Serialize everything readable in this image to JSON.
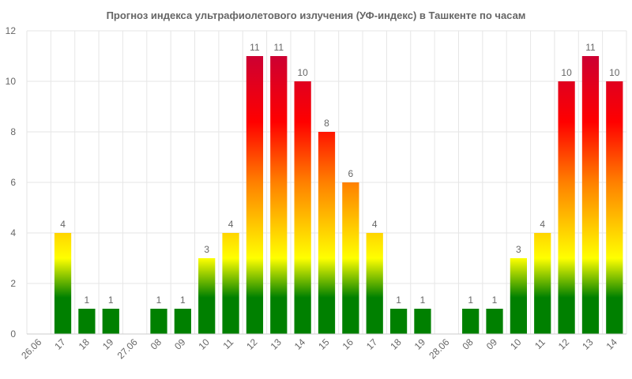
{
  "chart_data": {
    "type": "bar",
    "title": "Прогноз индекса ультрафиолетового излучения (УФ-индекс) в Ташкенте по часам",
    "xlabel": "",
    "ylabel": "",
    "ylim": [
      0,
      12
    ],
    "yticks": [
      "0",
      "2",
      "4",
      "6",
      "8",
      "10",
      "12"
    ],
    "grid": true,
    "legend": "none",
    "categories": [
      "26.06",
      "17",
      "18",
      "19",
      "27.06",
      "08",
      "09",
      "10",
      "11",
      "12",
      "13",
      "14",
      "15",
      "16",
      "17",
      "18",
      "19",
      "28.06",
      "08",
      "09",
      "10",
      "11",
      "12",
      "13",
      "14"
    ],
    "values": [
      null,
      4,
      1,
      1,
      null,
      1,
      1,
      3,
      4,
      11,
      11,
      10,
      8,
      6,
      4,
      1,
      1,
      null,
      1,
      1,
      3,
      4,
      10,
      11,
      10
    ],
    "colors": {
      "low": "#008000",
      "moderate": "#ffff00",
      "high": "#ff8000",
      "very_high": "#ff0000",
      "extreme": "#cc0033"
    }
  }
}
